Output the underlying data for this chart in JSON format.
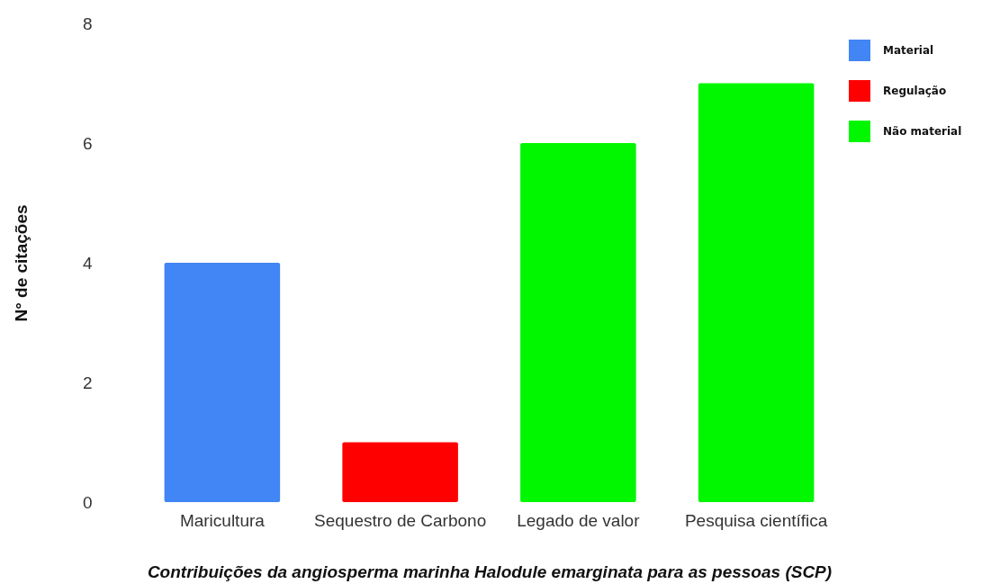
{
  "chart_data": {
    "type": "bar",
    "xlabel": "Contribuições da angiosperma marinha Halodule emarginata para as pessoas (SCP)",
    "ylabel": "N° de citações",
    "categories": [
      "Maricultura",
      "Sequestro de Carbono",
      "Legado de valor",
      "Pesquisa científica"
    ],
    "series": [
      {
        "name": "Material",
        "color": "#4285f4",
        "values": [
          4,
          null,
          null,
          null
        ]
      },
      {
        "name": "Regulação",
        "color": "#ff0000",
        "values": [
          null,
          1,
          null,
          null
        ]
      },
      {
        "name": "Não material",
        "color": "#00f700",
        "values": [
          null,
          null,
          6,
          7
        ]
      }
    ],
    "ylim": [
      0,
      8
    ],
    "yticks": [
      0,
      2,
      4,
      6,
      8
    ],
    "legend": "top right"
  }
}
